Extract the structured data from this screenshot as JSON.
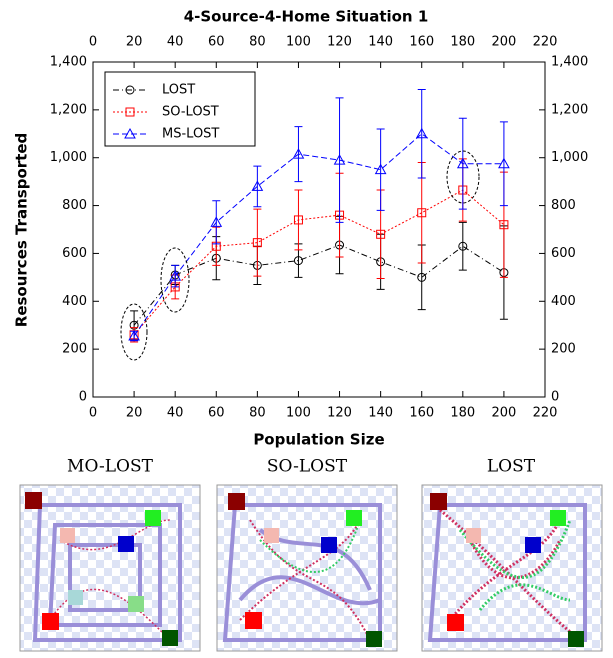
{
  "chart_data": {
    "type": "line",
    "title": "4-Source-4-Home Situation 1",
    "xlabel": "Population Size",
    "ylabel": "Resources Transported",
    "x": [
      20,
      40,
      60,
      80,
      100,
      120,
      140,
      160,
      180,
      200
    ],
    "xlim": [
      0,
      220
    ],
    "xticks": [
      0,
      20,
      40,
      60,
      80,
      100,
      120,
      140,
      160,
      180,
      200,
      220
    ],
    "ylim": [
      0,
      1400
    ],
    "yticks": [
      0,
      200,
      400,
      600,
      800,
      {
        "value": 1000,
        "label": "1,000"
      },
      {
        "value": 1200,
        "label": "1,200"
      },
      {
        "value": 1400,
        "label": "1,400"
      }
    ],
    "legend": "upper left",
    "series": [
      {
        "name": "LOST",
        "color": "#000000",
        "marker": "circle",
        "linestyle": "dashdot",
        "values": [
          300,
          510,
          580,
          550,
          570,
          635,
          565,
          500,
          630,
          520
        ],
        "errors": [
          60,
          40,
          90,
          80,
          70,
          120,
          115,
          135,
          100,
          195
        ]
      },
      {
        "name": "SO-LOST",
        "color": "#ff0000",
        "marker": "square",
        "linestyle": "dotted",
        "values": [
          260,
          460,
          630,
          645,
          740,
          760,
          680,
          770,
          865,
          720
        ],
        "errors": [
          30,
          50,
          80,
          140,
          125,
          175,
          185,
          210,
          130,
          220
        ]
      },
      {
        "name": "MS-LOST",
        "color": "#0000ff",
        "marker": "triangle",
        "linestyle": "dashed",
        "values": [
          255,
          505,
          730,
          880,
          1015,
          990,
          950,
          1100,
          975,
          975
        ],
        "errors": [
          20,
          45,
          90,
          85,
          115,
          260,
          170,
          185,
          190,
          175
        ]
      }
    ]
  },
  "panels": [
    {
      "title": "MO-LOST"
    },
    {
      "title": "SO-LOST"
    },
    {
      "title": "LOST"
    }
  ]
}
